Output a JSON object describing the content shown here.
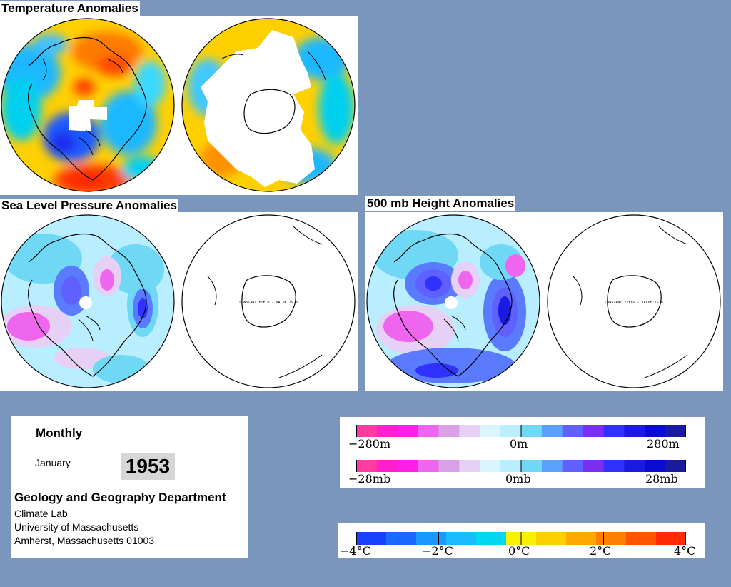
{
  "titles": {
    "temperature": "Temperature Anomalies",
    "slp": "Sea Level Pressure Anomalies",
    "height500": "500 mb Height Anomalies"
  },
  "maps": {
    "constant_field_text": "CONSTANT FIELD - VALUE IS 0"
  },
  "info": {
    "period": "Monthly",
    "month": "January",
    "year": "1953",
    "department": "Geology and Geography Department",
    "lab": "Climate Lab",
    "university": "University of Massachusetts",
    "address": "Amherst, Massachusetts 01003"
  },
  "legends": {
    "height": {
      "labels": [
        "−280m",
        "0m",
        "280m"
      ],
      "colors": [
        "#ff3aa0",
        "#ff1fcc",
        "#ff20e8",
        "#ee66ee",
        "#d9a0e8",
        "#e6d0f5",
        "#d9f5ff",
        "#b8eeff",
        "#6ed8f5",
        "#5aa0ff",
        "#6060ff",
        "#7a2ef0",
        "#3030ff",
        "#1a1ae0",
        "#0a0ad0",
        "#1a1aa0"
      ]
    },
    "pressure": {
      "labels": [
        "−28mb",
        "0mb",
        "28mb"
      ],
      "colors": [
        "#ff3aa0",
        "#ff1fcc",
        "#ff20e8",
        "#ee66ee",
        "#d9a0e8",
        "#e6d0f5",
        "#d9f5ff",
        "#b8eeff",
        "#6ed8f5",
        "#5aa0ff",
        "#6060ff",
        "#7a2ef0",
        "#3030ff",
        "#1a1ae0",
        "#0a0ad0",
        "#1a1aa0"
      ]
    },
    "temperature": {
      "labels": [
        "−4°C",
        "−2°C",
        "0°C",
        "2°C",
        "4°C"
      ],
      "colors": [
        "#1a40ff",
        "#1a6aff",
        "#1a98ff",
        "#1abcff",
        "#00d8f0",
        "#f8f000",
        "#ffd000",
        "#ffaa00",
        "#ff8000",
        "#ff5500",
        "#ff2a00"
      ]
    }
  }
}
